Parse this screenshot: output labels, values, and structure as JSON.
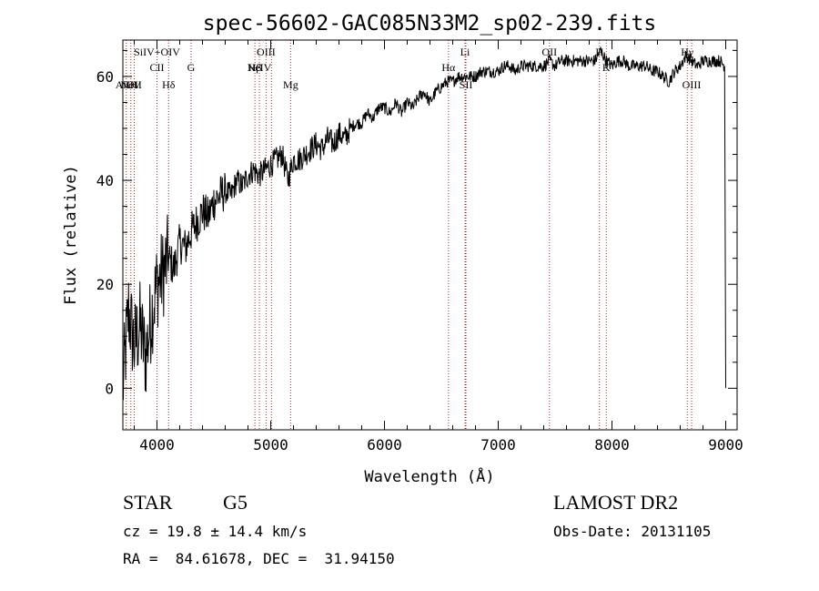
{
  "chart_data": {
    "type": "line",
    "title": "spec-56602-GAC085N33M2_sp02-239.fits",
    "xlabel": "Wavelength (Å)",
    "ylabel": "Flux (relative)",
    "xlim": [
      3700,
      9100
    ],
    "ylim": [
      -8,
      67
    ],
    "xticks": [
      4000,
      5000,
      6000,
      7000,
      8000,
      9000
    ],
    "yticks": [
      0,
      20,
      40,
      60
    ],
    "grid": false,
    "series": [
      {
        "x": [
          3700,
          3750,
          3800,
          3850,
          3900,
          3950,
          4000,
          4050,
          4100,
          4150,
          4200,
          4250,
          4300,
          4350,
          4400,
          4450,
          4500,
          4550,
          4600,
          4650,
          4700,
          4750,
          4800,
          4850,
          4900,
          4950,
          5000,
          5050,
          5100,
          5150,
          5200,
          5250,
          5300,
          5350,
          5400,
          5450,
          5500,
          5550,
          5600,
          5650,
          5700,
          5750,
          5800,
          5850,
          5900,
          5950,
          6000,
          6050,
          6100,
          6150,
          6200,
          6250,
          6300,
          6350,
          6400,
          6450,
          6500,
          6550,
          6600,
          6650,
          6700,
          6750,
          6800,
          6850,
          6900,
          6950,
          7000,
          7050,
          7100,
          7150,
          7200,
          7250,
          7300,
          7350,
          7400,
          7450,
          7500,
          7550,
          7600,
          7650,
          7700,
          7750,
          7800,
          7850,
          7900,
          7950,
          8000,
          8050,
          8100,
          8150,
          8200,
          8250,
          8300,
          8350,
          8400,
          8450,
          8500,
          8550,
          8600,
          8650,
          8700,
          8750,
          8800,
          8850,
          8900,
          8950,
          8990,
          9000
        ],
        "y": [
          0,
          15,
          8,
          12,
          6,
          14,
          20,
          22,
          25,
          23,
          28,
          27,
          30,
          32,
          34,
          33,
          36,
          37,
          38,
          37,
          40,
          39,
          41,
          42,
          41,
          42,
          43,
          44,
          45,
          40,
          44,
          44,
          45,
          46,
          47,
          46,
          48,
          47,
          49,
          48,
          50,
          51,
          51,
          53,
          52,
          54,
          54,
          53,
          55,
          53,
          55,
          54,
          56,
          57,
          55,
          57,
          58,
          59,
          59,
          60,
          60,
          60,
          60,
          61,
          61,
          61,
          61,
          62,
          62,
          61,
          62,
          62,
          62,
          62,
          62,
          63,
          62,
          63,
          63,
          63,
          63,
          63,
          63,
          63,
          65,
          63,
          62,
          63,
          63,
          62,
          62,
          62,
          62,
          61,
          61,
          60,
          59,
          61,
          62,
          64,
          63,
          62,
          63,
          63,
          63,
          63,
          62,
          0
        ]
      }
    ],
    "lines": [
      {
        "x": 3730,
        "label": "AlIII",
        "row": 3
      },
      {
        "x": 3770,
        "label": "NeV",
        "row": 3
      },
      {
        "x": 3800,
        "label": "OII",
        "row": 3
      },
      {
        "x": 4000,
        "label": "SiIV+OIV",
        "row": 1
      },
      {
        "x": 4000,
        "label": "CII",
        "row": 2
      },
      {
        "x": 4102,
        "label": "Hδ",
        "row": 3
      },
      {
        "x": 4300,
        "label": "G",
        "row": 2
      },
      {
        "x": 4861,
        "label": "Hβ",
        "row": 2
      },
      {
        "x": 4900,
        "label": "NeIV",
        "row": 2
      },
      {
        "x": 4959,
        "label": "OIII",
        "row": 1
      },
      {
        "x": 5007,
        "label": "",
        "row": 0
      },
      {
        "x": 5175,
        "label": "Mg",
        "row": 3
      },
      {
        "x": 6563,
        "label": "Hα",
        "row": 2
      },
      {
        "x": 6708,
        "label": "Li",
        "row": 1
      },
      {
        "x": 6716,
        "label": "SII",
        "row": 3
      },
      {
        "x": 7450,
        "label": "OII",
        "row": 1
      },
      {
        "x": 7890,
        "label": "H",
        "row": 1
      },
      {
        "x": 7950,
        "label": "K",
        "row": 2
      },
      {
        "x": 8662,
        "label": "Hγ",
        "row": 1
      },
      {
        "x": 8700,
        "label": "OIII",
        "row": 3
      }
    ]
  },
  "info": {
    "object_class": "STAR",
    "subclass": "G5",
    "survey": "LAMOST DR2",
    "cz": "cz = 19.8 ± 14.4 km/s",
    "obs_date": "Obs-Date: 20131105",
    "coords": "RA =  84.61678, DEC =  31.94150"
  }
}
